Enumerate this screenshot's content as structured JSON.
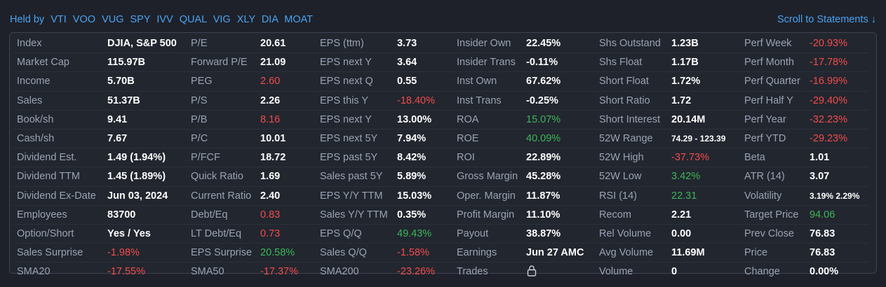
{
  "header": {
    "held_by_label": "Held by",
    "tickers": [
      "VTI",
      "VOO",
      "VUG",
      "SPY",
      "IVV",
      "QUAL",
      "VIG",
      "XLY",
      "DIA",
      "MOAT"
    ],
    "scroll_link": "Scroll to Statements ↓"
  },
  "colors": {
    "accent": "#4aa3f0",
    "positive": "#3cb659",
    "negative": "#f24b4b",
    "label": "#99a3b3"
  },
  "rows": [
    [
      [
        "Index",
        "DJIA, S&P 500",
        ""
      ],
      [
        "P/E",
        "20.61",
        ""
      ],
      [
        "EPS (ttm)",
        "3.73",
        ""
      ],
      [
        "Insider Own",
        "22.45%",
        ""
      ],
      [
        "Shs Outstand",
        "1.23B",
        ""
      ],
      [
        "Perf Week",
        "-20.93%",
        "neg"
      ]
    ],
    [
      [
        "Market Cap",
        "115.97B",
        ""
      ],
      [
        "Forward P/E",
        "21.09",
        ""
      ],
      [
        "EPS next Y",
        "3.64",
        ""
      ],
      [
        "Insider Trans",
        "-0.11%",
        ""
      ],
      [
        "Shs Float",
        "1.17B",
        ""
      ],
      [
        "Perf Month",
        "-17.78%",
        "neg"
      ]
    ],
    [
      [
        "Income",
        "5.70B",
        ""
      ],
      [
        "PEG",
        "2.60",
        "neg"
      ],
      [
        "EPS next Q",
        "0.55",
        ""
      ],
      [
        "Inst Own",
        "67.62%",
        ""
      ],
      [
        "Short Float",
        "1.72%",
        ""
      ],
      [
        "Perf Quarter",
        "-16.99%",
        "neg"
      ]
    ],
    [
      [
        "Sales",
        "51.37B",
        ""
      ],
      [
        "P/S",
        "2.26",
        ""
      ],
      [
        "EPS this Y",
        "-18.40%",
        "neg"
      ],
      [
        "Inst Trans",
        "-0.25%",
        ""
      ],
      [
        "Short Ratio",
        "1.72",
        ""
      ],
      [
        "Perf Half Y",
        "-29.40%",
        "neg"
      ]
    ],
    [
      [
        "Book/sh",
        "9.41",
        ""
      ],
      [
        "P/B",
        "8.16",
        "neg"
      ],
      [
        "EPS next Y",
        "13.00%",
        ""
      ],
      [
        "ROA",
        "15.07%",
        "pos"
      ],
      [
        "Short Interest",
        "20.14M",
        ""
      ],
      [
        "Perf Year",
        "-32.23%",
        "neg"
      ]
    ],
    [
      [
        "Cash/sh",
        "7.67",
        ""
      ],
      [
        "P/C",
        "10.01",
        ""
      ],
      [
        "EPS next 5Y",
        "7.94%",
        ""
      ],
      [
        "ROE",
        "40.09%",
        "pos"
      ],
      [
        "52W Range",
        "74.29 - 123.39",
        "small"
      ],
      [
        "Perf YTD",
        "-29.23%",
        "neg"
      ]
    ],
    [
      [
        "Dividend Est.",
        "1.49 (1.94%)",
        ""
      ],
      [
        "P/FCF",
        "18.72",
        ""
      ],
      [
        "EPS past 5Y",
        "8.42%",
        ""
      ],
      [
        "ROI",
        "22.89%",
        ""
      ],
      [
        "52W High",
        "-37.73%",
        "neg"
      ],
      [
        "Beta",
        "1.01",
        ""
      ]
    ],
    [
      [
        "Dividend TTM",
        "1.45 (1.89%)",
        ""
      ],
      [
        "Quick Ratio",
        "1.69",
        ""
      ],
      [
        "Sales past 5Y",
        "5.89%",
        ""
      ],
      [
        "Gross Margin",
        "45.28%",
        ""
      ],
      [
        "52W Low",
        "3.42%",
        "pos"
      ],
      [
        "ATR (14)",
        "3.07",
        ""
      ]
    ],
    [
      [
        "Dividend Ex-Date",
        "Jun 03, 2024",
        ""
      ],
      [
        "Current Ratio",
        "2.40",
        ""
      ],
      [
        "EPS Y/Y TTM",
        "15.03%",
        ""
      ],
      [
        "Oper. Margin",
        "11.87%",
        ""
      ],
      [
        "RSI (14)",
        "22.31",
        "pos"
      ],
      [
        "Volatility",
        "3.19% 2.29%",
        "small"
      ]
    ],
    [
      [
        "Employees",
        "83700",
        ""
      ],
      [
        "Debt/Eq",
        "0.83",
        "neg"
      ],
      [
        "Sales Y/Y TTM",
        "0.35%",
        ""
      ],
      [
        "Profit Margin",
        "11.10%",
        ""
      ],
      [
        "Recom",
        "2.21",
        ""
      ],
      [
        "Target Price",
        "94.06",
        "pos"
      ]
    ],
    [
      [
        "Option/Short",
        "Yes / Yes",
        ""
      ],
      [
        "LT Debt/Eq",
        "0.73",
        "neg"
      ],
      [
        "EPS Q/Q",
        "49.43%",
        "pos"
      ],
      [
        "Payout",
        "38.87%",
        ""
      ],
      [
        "Rel Volume",
        "0.00",
        ""
      ],
      [
        "Prev Close",
        "76.83",
        ""
      ]
    ],
    [
      [
        "Sales Surprise",
        "-1.98%",
        "neg"
      ],
      [
        "EPS Surprise",
        "20.58%",
        "pos"
      ],
      [
        "Sales Q/Q",
        "-1.58%",
        "neg"
      ],
      [
        "Earnings",
        "Jun 27 AMC",
        ""
      ],
      [
        "Avg Volume",
        "11.69M",
        ""
      ],
      [
        "Price",
        "76.83",
        ""
      ]
    ],
    [
      [
        "SMA20",
        "-17.55%",
        "neg"
      ],
      [
        "SMA50",
        "-17.37%",
        "neg"
      ],
      [
        "SMA200",
        "-23.26%",
        "neg"
      ],
      [
        "Trades",
        "",
        "lock"
      ],
      [
        "Volume",
        "0",
        ""
      ],
      [
        "Change",
        "0.00%",
        ""
      ]
    ]
  ]
}
